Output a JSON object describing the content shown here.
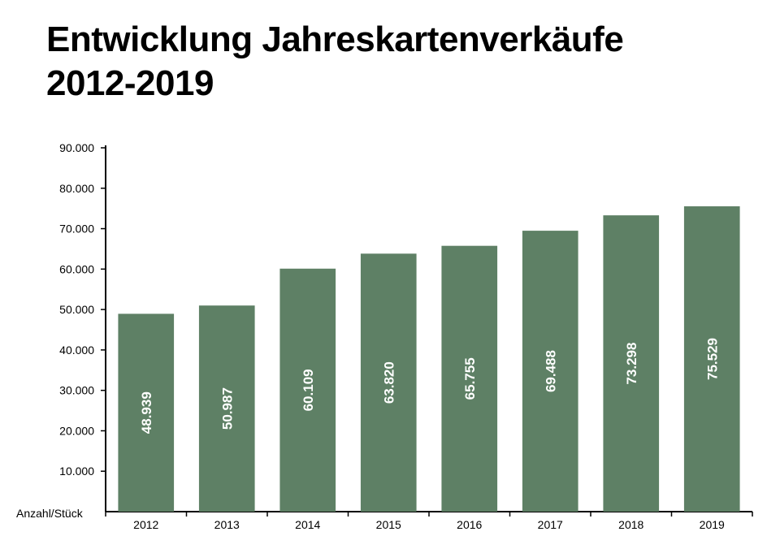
{
  "title_line1": "Entwicklung Jahreskartenverkäufe",
  "title_line2": "2012-2019",
  "chart_data": {
    "type": "bar",
    "categories": [
      "2012",
      "2013",
      "2014",
      "2015",
      "2016",
      "2017",
      "2018",
      "2019"
    ],
    "values": [
      48939,
      50987,
      60109,
      63820,
      65755,
      69488,
      73298,
      75529
    ],
    "value_labels": [
      "48.939",
      "50.987",
      "60.109",
      "63.820",
      "65.755",
      "69.488",
      "73.298",
      "75.529"
    ],
    "ylabel": "Anzahl/Stück",
    "ylim": [
      0,
      90000
    ],
    "yticks": [
      10000,
      20000,
      30000,
      40000,
      50000,
      60000,
      70000,
      80000,
      90000
    ],
    "ytick_labels": [
      "10.000",
      "20.000",
      "30.000",
      "40.000",
      "50.000",
      "60.000",
      "70.000",
      "80.000",
      "90.000"
    ],
    "bar_color": "#5e8065",
    "grid": false
  }
}
